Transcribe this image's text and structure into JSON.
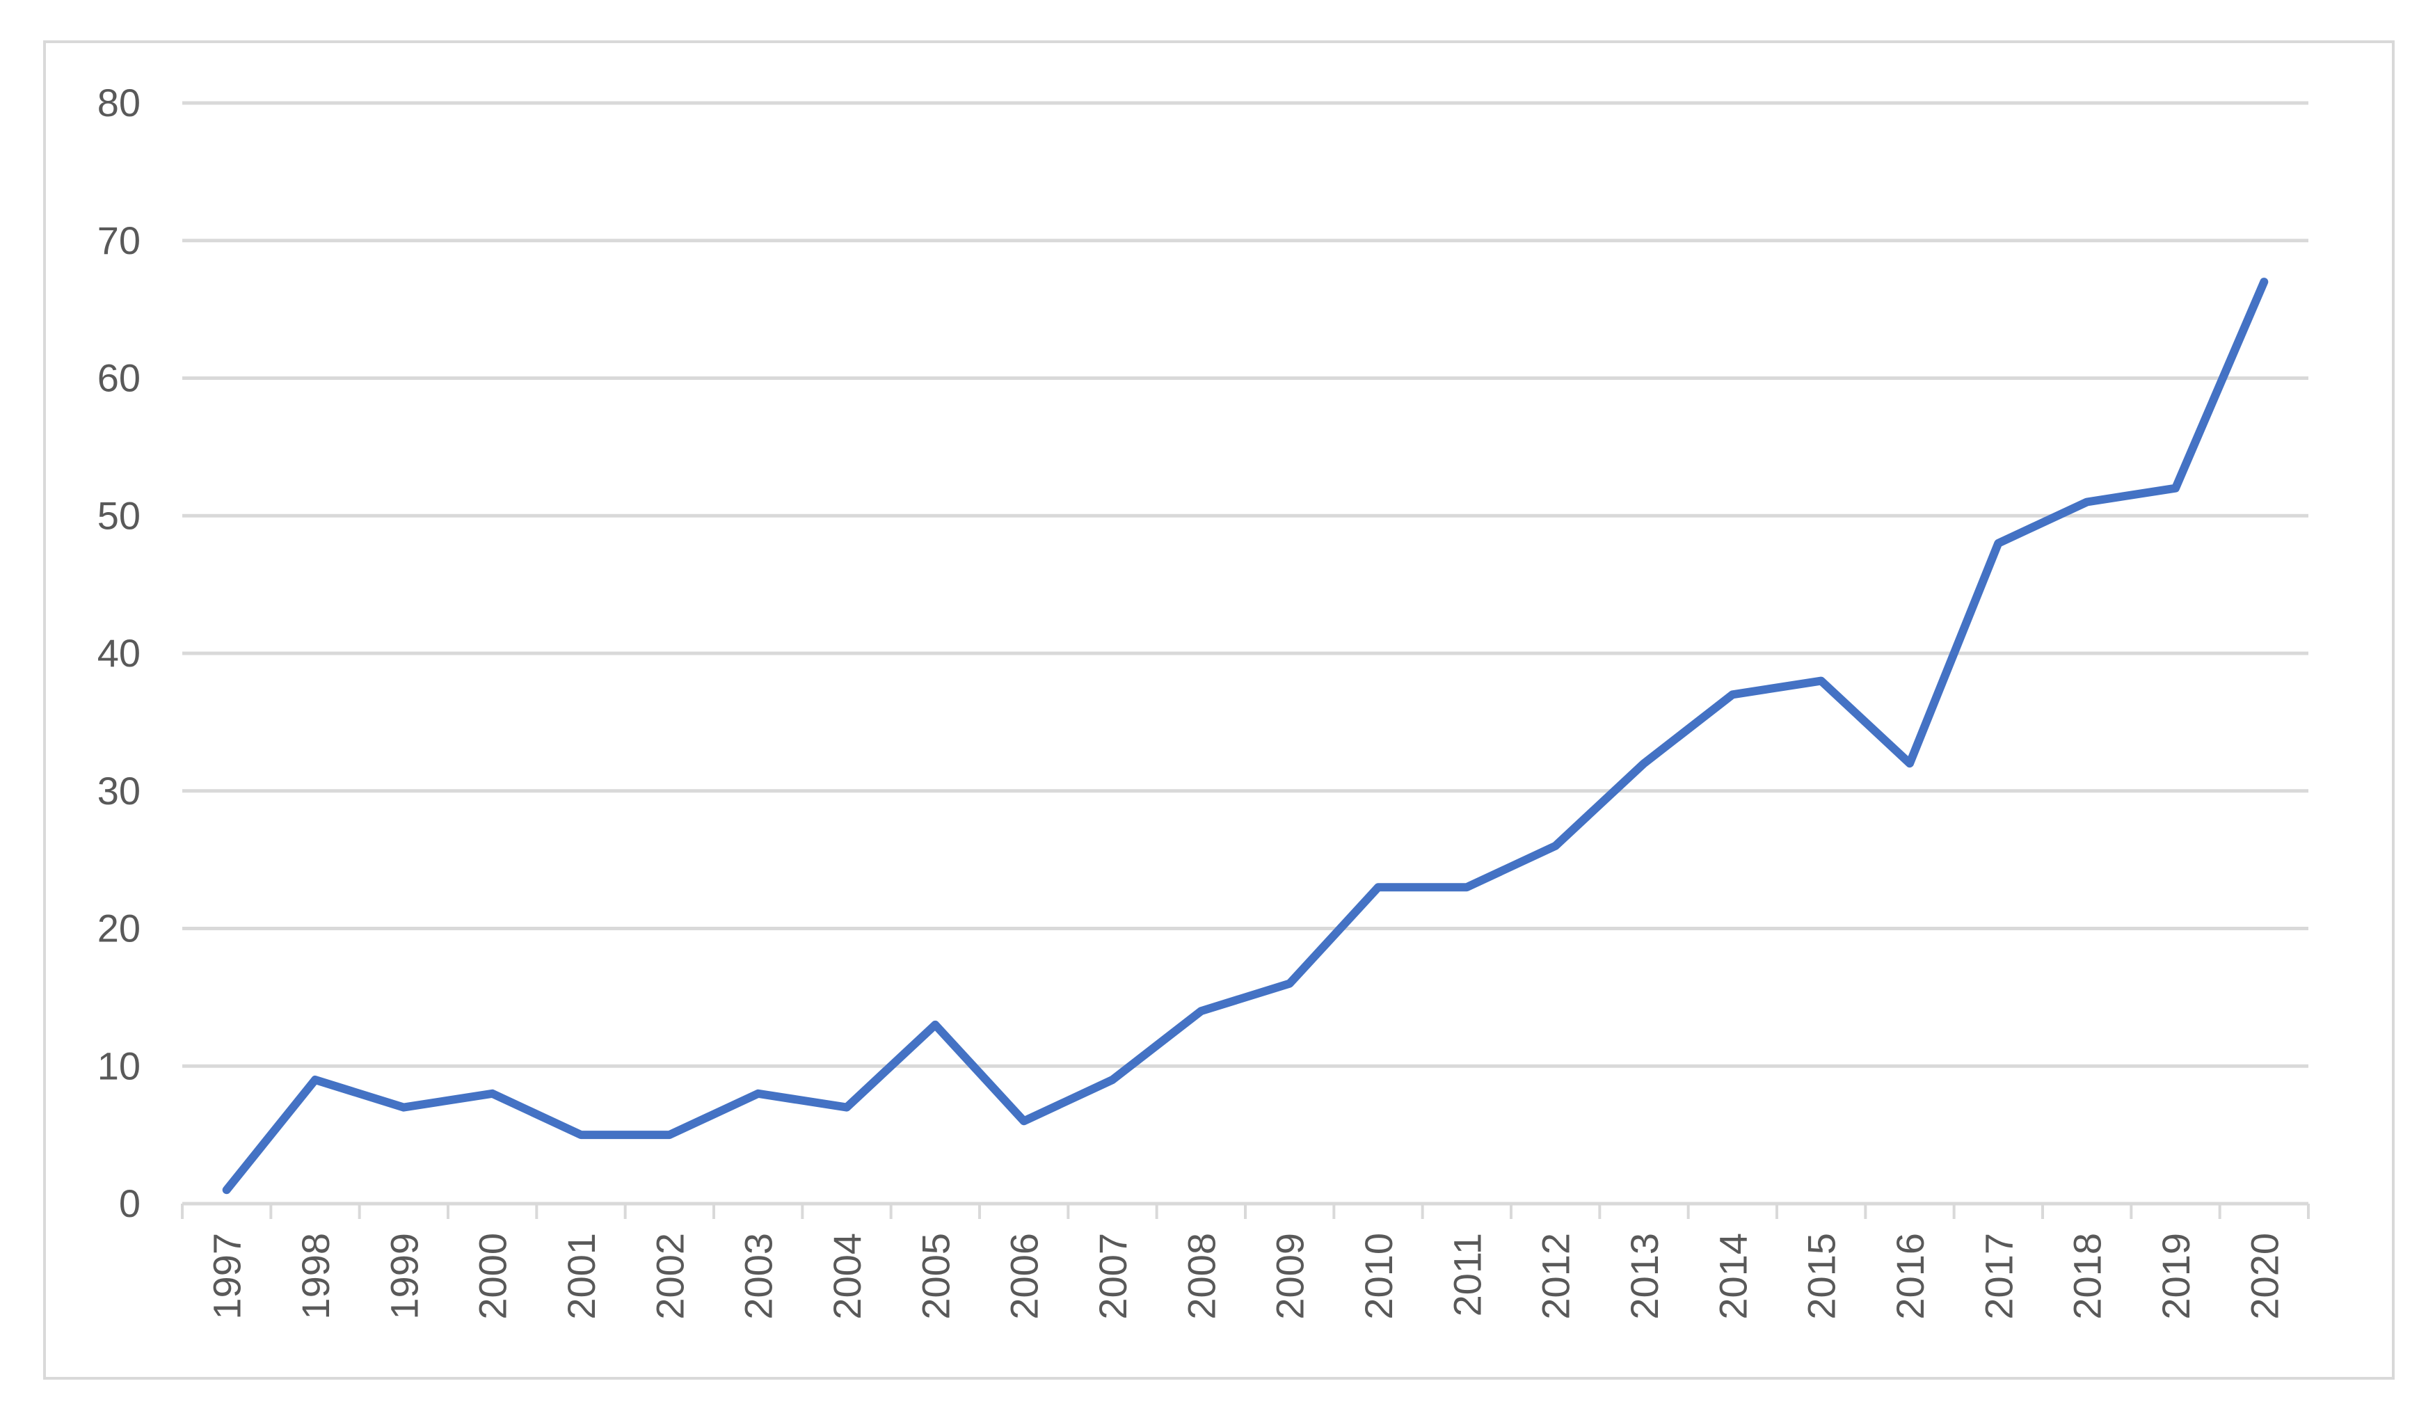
{
  "chart_data": {
    "type": "line",
    "title": "",
    "xlabel": "",
    "ylabel": "",
    "x": [
      "1997",
      "1998",
      "1999",
      "2000",
      "2001",
      "2002",
      "2003",
      "2004",
      "2005",
      "2006",
      "2007",
      "2008",
      "2009",
      "2010",
      "2011",
      "2012",
      "2013",
      "2014",
      "2015",
      "2016",
      "2017",
      "2018",
      "2019",
      "2020"
    ],
    "series": [
      {
        "values": [
          1,
          9,
          7,
          8,
          5,
          5,
          8,
          7,
          13,
          6,
          9,
          14,
          16,
          23,
          23,
          26,
          32,
          37,
          38,
          32,
          48,
          51,
          52,
          67
        ],
        "color": "#4472c4"
      }
    ],
    "ylim": [
      0,
      80
    ],
    "yticks": [
      0,
      10,
      20,
      30,
      40,
      50,
      60,
      70,
      80
    ],
    "grid": true,
    "legend": "none",
    "x_tick_rotation": "vertical"
  }
}
